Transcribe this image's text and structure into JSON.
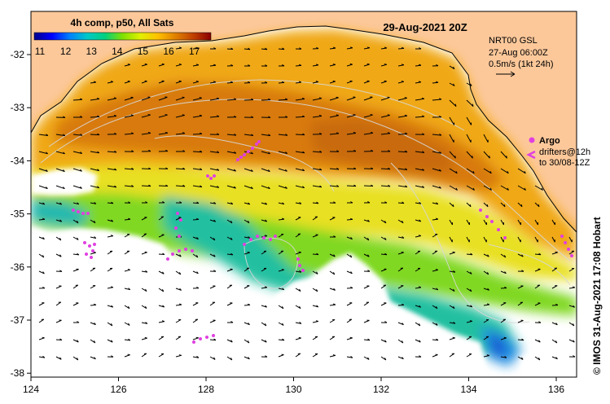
{
  "map": {
    "date_title": "29-Aug-2021 20Z",
    "product_label": "4h comp, p50, All Sats",
    "colorbar": {
      "ticks": [
        "11",
        "12",
        "13",
        "14",
        "15",
        "16",
        "17"
      ],
      "colors": [
        "#00008b",
        "#0000ff",
        "#0080ff",
        "#00c8c8",
        "#00d080",
        "#80e000",
        "#e0f000",
        "#ffc000",
        "#e08000",
        "#c04000",
        "#8b0000"
      ]
    },
    "current_info": {
      "line1": "NRT00 GSL",
      "line2": "27-Aug 06:00Z",
      "line3": "0.5m/s (1kt 24h)"
    },
    "legend": {
      "argo_label": "Argo",
      "drifters_line1": "drifters@12h",
      "drifters_line2": "to 30/08-12Z"
    },
    "credit": "©  IMOS 31-Aug-2021 17:08 Hobart",
    "x_ticks": [
      "124",
      "126",
      "128",
      "130",
      "132",
      "134",
      "136"
    ],
    "y_ticks": [
      "-32",
      "-33",
      "-34",
      "-35",
      "-36",
      "-37",
      "-38"
    ],
    "colors": {
      "land": "#fcc89a",
      "no_data": "#ffffff",
      "argo": "#e040e0",
      "contour": "#d8d8d8"
    }
  }
}
